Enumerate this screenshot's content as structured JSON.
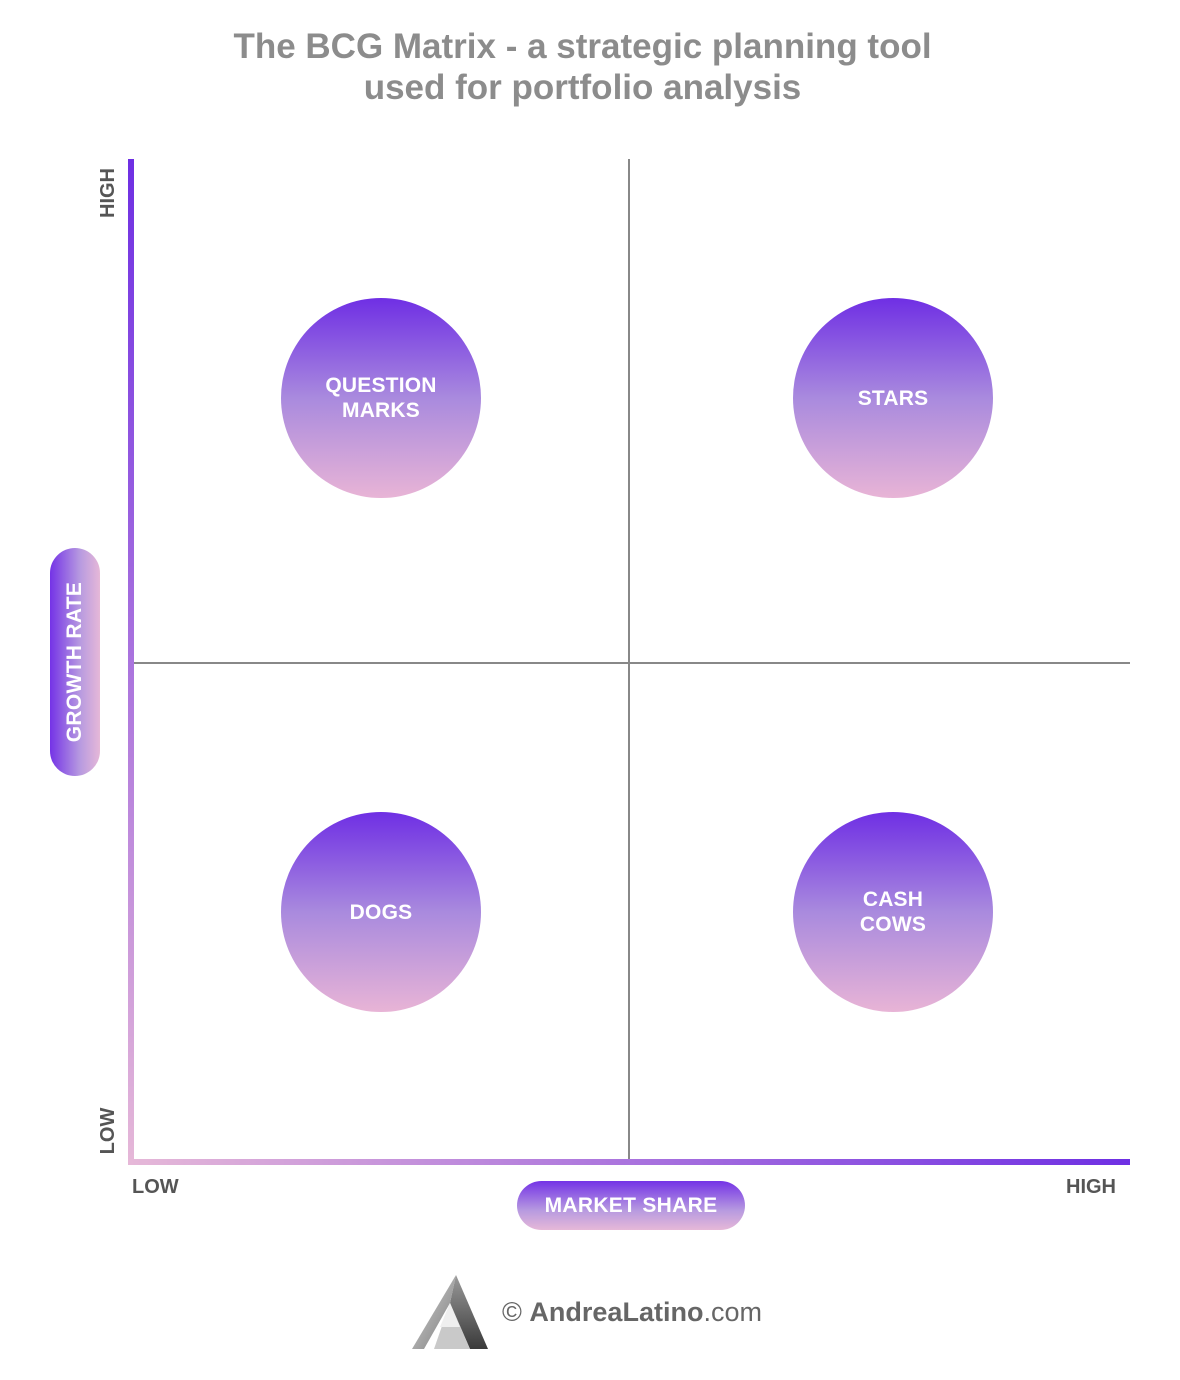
{
  "title": {
    "line1": "The BCG Matrix - a strategic planning tool",
    "line2": "used for portfolio analysis"
  },
  "y_axis": {
    "label": "GROWTH RATE",
    "high": "HIGH",
    "low": "LOW"
  },
  "x_axis": {
    "label": "MARKET SHARE",
    "low": "LOW",
    "high": "HIGH"
  },
  "quadrants": {
    "question_marks": "QUESTION\nMARKS",
    "stars": "STARS",
    "dogs": "DOGS",
    "cash_cows": "CASH\nCOWS"
  },
  "footer": {
    "copyright_symbol": "©",
    "brand": "AndreaLatino",
    "domain": ".com"
  },
  "colors": {
    "accent_purple": "#7433e6",
    "accent_pink": "#e6b8d8",
    "axis_line": "#888888",
    "title_gray": "#8c8c8c"
  }
}
